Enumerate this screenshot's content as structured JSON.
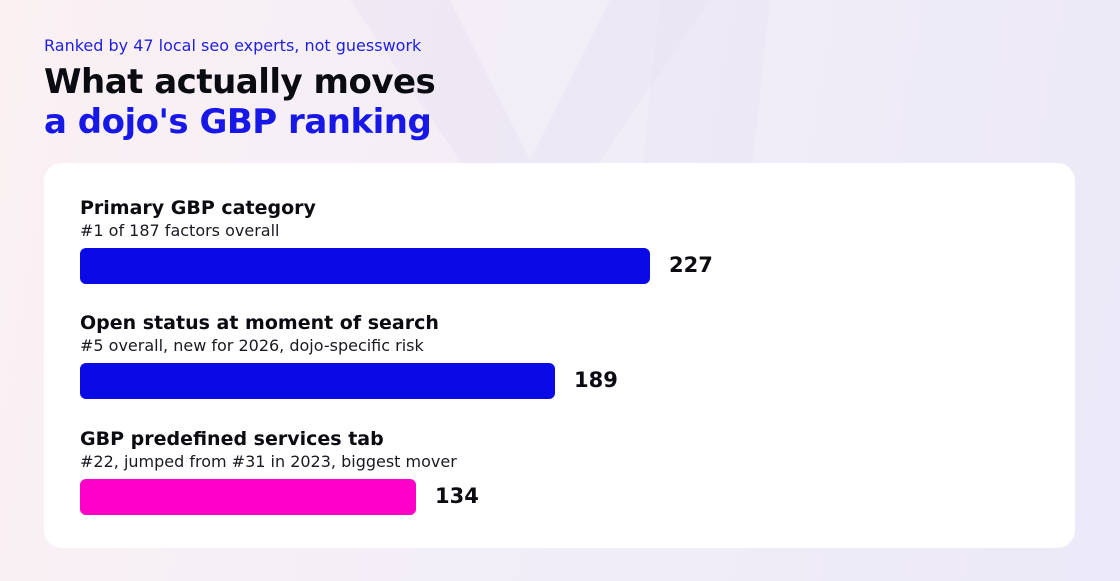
{
  "header": {
    "eyebrow": "Ranked by 47 local seo experts, not guesswork",
    "title_line1": "What actually moves",
    "title_line2": "a dojo's GBP ranking"
  },
  "colors": {
    "accent_blue": "#0a0ae6",
    "accent_magenta": "#ff00c8"
  },
  "chart_data": {
    "type": "bar",
    "orientation": "horizontal",
    "categories": [
      "Primary GBP category",
      "Open status at moment of search",
      "GBP predefined services tab"
    ],
    "subtitles": [
      "#1 of 187 factors overall",
      "#5 overall, new for 2026, dojo-specific risk",
      "#22, jumped from #31 in 2023, biggest mover"
    ],
    "values": [
      227,
      189,
      134
    ],
    "bar_colors": [
      "#0a0ae6",
      "#0a0ae6",
      "#ff00c8"
    ],
    "xlim": [
      0,
      400
    ],
    "grid": false
  }
}
